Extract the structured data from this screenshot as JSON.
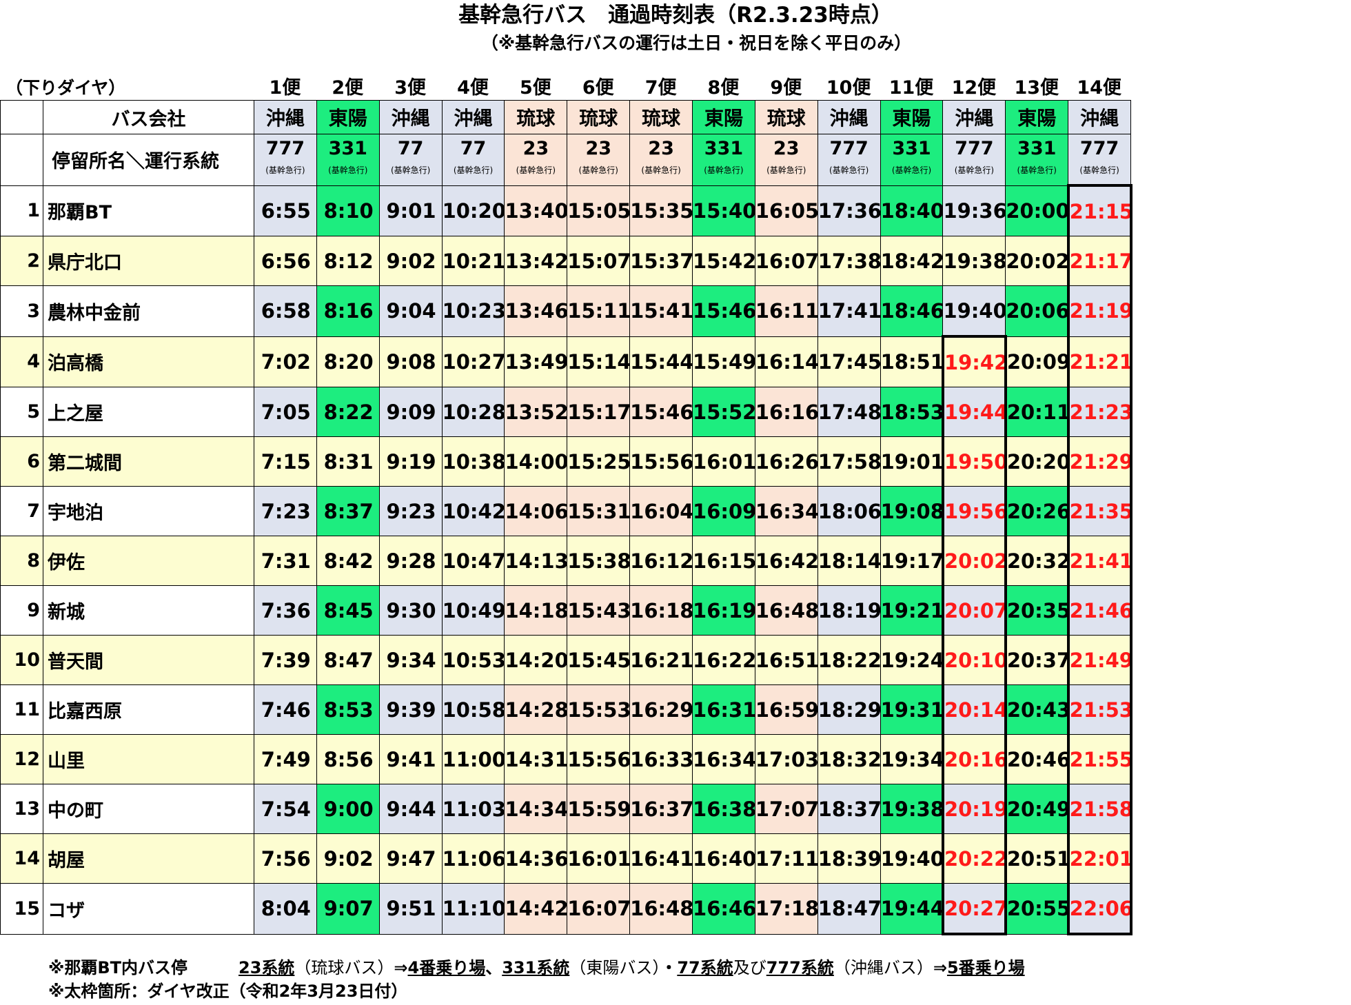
{
  "title": "基幹急行バス　通過時刻表（R2.3.23時点）",
  "subtitle": "（※基幹急行バスの運行は土日・祝日を除く平日のみ）",
  "direction_label": "（下りダイヤ）",
  "header": {
    "company_label": "バス会社",
    "stop_label": "停留所名＼運行系統",
    "system_sub": "(基幹急行)"
  },
  "trips": [
    {
      "label": "1便",
      "company": "沖縄",
      "system": "777",
      "color": "okinawa"
    },
    {
      "label": "2便",
      "company": "東陽",
      "system": "331",
      "color": "toyo"
    },
    {
      "label": "3便",
      "company": "沖縄",
      "system": "77",
      "color": "okinawa"
    },
    {
      "label": "4便",
      "company": "沖縄",
      "system": "77",
      "color": "okinawa"
    },
    {
      "label": "5便",
      "company": "琉球",
      "system": "23",
      "color": "ryukyu"
    },
    {
      "label": "6便",
      "company": "琉球",
      "system": "23",
      "color": "ryukyu"
    },
    {
      "label": "7便",
      "company": "琉球",
      "system": "23",
      "color": "ryukyu"
    },
    {
      "label": "8便",
      "company": "東陽",
      "system": "331",
      "color": "toyo"
    },
    {
      "label": "9便",
      "company": "琉球",
      "system": "23",
      "color": "ryukyu"
    },
    {
      "label": "10便",
      "company": "沖縄",
      "system": "777",
      "color": "okinawa"
    },
    {
      "label": "11便",
      "company": "東陽",
      "system": "331",
      "color": "toyo"
    },
    {
      "label": "12便",
      "company": "沖縄",
      "system": "777",
      "color": "okinawa"
    },
    {
      "label": "13便",
      "company": "東陽",
      "system": "331",
      "color": "toyo"
    },
    {
      "label": "14便",
      "company": "沖縄",
      "system": "777",
      "color": "okinawa"
    }
  ],
  "stops": [
    {
      "num": "1",
      "name": "那覇BT",
      "times": [
        "6:55",
        "8:10",
        "9:01",
        "10:20",
        "13:40",
        "15:05",
        "15:35",
        "15:40",
        "16:05",
        "17:36",
        "18:40",
        "19:36",
        "20:00",
        "21:15"
      ]
    },
    {
      "num": "2",
      "name": "県庁北口",
      "times": [
        "6:56",
        "8:12",
        "9:02",
        "10:21",
        "13:42",
        "15:07",
        "15:37",
        "15:42",
        "16:07",
        "17:38",
        "18:42",
        "19:38",
        "20:02",
        "21:17"
      ]
    },
    {
      "num": "3",
      "name": "農林中金前",
      "times": [
        "6:58",
        "8:16",
        "9:04",
        "10:23",
        "13:46",
        "15:11",
        "15:41",
        "15:46",
        "16:11",
        "17:41",
        "18:46",
        "19:40",
        "20:06",
        "21:19"
      ]
    },
    {
      "num": "4",
      "name": "泊高橋",
      "times": [
        "7:02",
        "8:20",
        "9:08",
        "10:27",
        "13:49",
        "15:14",
        "15:44",
        "15:49",
        "16:14",
        "17:45",
        "18:51",
        "19:42",
        "20:09",
        "21:21"
      ]
    },
    {
      "num": "5",
      "name": "上之屋",
      "times": [
        "7:05",
        "8:22",
        "9:09",
        "10:28",
        "13:52",
        "15:17",
        "15:46",
        "15:52",
        "16:16",
        "17:48",
        "18:53",
        "19:44",
        "20:11",
        "21:23"
      ]
    },
    {
      "num": "6",
      "name": "第二城間",
      "times": [
        "7:15",
        "8:31",
        "9:19",
        "10:38",
        "14:00",
        "15:25",
        "15:56",
        "16:01",
        "16:26",
        "17:58",
        "19:01",
        "19:50",
        "20:20",
        "21:29"
      ]
    },
    {
      "num": "7",
      "name": "宇地泊",
      "times": [
        "7:23",
        "8:37",
        "9:23",
        "10:42",
        "14:06",
        "15:31",
        "16:04",
        "16:09",
        "16:34",
        "18:06",
        "19:08",
        "19:56",
        "20:26",
        "21:35"
      ]
    },
    {
      "num": "8",
      "name": "伊佐",
      "times": [
        "7:31",
        "8:42",
        "9:28",
        "10:47",
        "14:13",
        "15:38",
        "16:12",
        "16:15",
        "16:42",
        "18:14",
        "19:17",
        "20:02",
        "20:32",
        "21:41"
      ]
    },
    {
      "num": "9",
      "name": "新城",
      "times": [
        "7:36",
        "8:45",
        "9:30",
        "10:49",
        "14:18",
        "15:43",
        "16:18",
        "16:19",
        "16:48",
        "18:19",
        "19:21",
        "20:07",
        "20:35",
        "21:46"
      ]
    },
    {
      "num": "10",
      "name": "普天間",
      "times": [
        "7:39",
        "8:47",
        "9:34",
        "10:53",
        "14:20",
        "15:45",
        "16:21",
        "16:22",
        "16:51",
        "18:22",
        "19:24",
        "20:10",
        "20:37",
        "21:49"
      ]
    },
    {
      "num": "11",
      "name": "比嘉西原",
      "times": [
        "7:46",
        "8:53",
        "9:39",
        "10:58",
        "14:28",
        "15:53",
        "16:29",
        "16:31",
        "16:59",
        "18:29",
        "19:31",
        "20:14",
        "20:43",
        "21:53"
      ]
    },
    {
      "num": "12",
      "name": "山里",
      "times": [
        "7:49",
        "8:56",
        "9:41",
        "11:00",
        "14:31",
        "15:56",
        "16:33",
        "16:34",
        "17:03",
        "18:32",
        "19:34",
        "20:16",
        "20:46",
        "21:55"
      ]
    },
    {
      "num": "13",
      "name": "中の町",
      "times": [
        "7:54",
        "9:00",
        "9:44",
        "11:03",
        "14:34",
        "15:59",
        "16:37",
        "16:38",
        "17:07",
        "18:37",
        "19:38",
        "20:19",
        "20:49",
        "21:58"
      ]
    },
    {
      "num": "14",
      "name": "胡屋",
      "times": [
        "7:56",
        "9:02",
        "9:47",
        "11:06",
        "14:36",
        "16:01",
        "16:41",
        "16:40",
        "17:11",
        "18:39",
        "19:40",
        "20:22",
        "20:51",
        "22:01"
      ]
    },
    {
      "num": "15",
      "name": "コザ",
      "times": [
        "8:04",
        "9:07",
        "9:51",
        "11:10",
        "14:42",
        "16:07",
        "16:48",
        "16:46",
        "17:18",
        "18:47",
        "19:44",
        "20:27",
        "20:55",
        "22:06"
      ]
    }
  ],
  "changed": {
    "trip12_from_stop": 4,
    "trip14_from_stop": 1,
    "text_color": "#ff1a1a"
  },
  "colors": {
    "okinawa": "#dee3ef",
    "toyo": "#1ded7f",
    "ryukyu": "#fbe4d6",
    "row_odd": "#ffffff",
    "row_even": "#fdfdd1"
  },
  "notes": {
    "n1_prefix": "※那覇BT内バス停",
    "n1_23": "23系統",
    "n1_ryukyu": "（琉球バス）",
    "n1_arrow1": "⇒",
    "n1_berth4": "4番乗り場",
    "n1_sep": "、",
    "n1_331": "331系統",
    "n1_toyo": "（東陽バス）",
    "n1_dot": "・",
    "n1_77": "77系統",
    "n1_and": "及び",
    "n1_777": "777系統",
    "n1_okinawa": "（沖縄バス）",
    "n1_arrow2": "⇒",
    "n1_berth5": "5番乗り場",
    "n2": "※太枠箇所：ダイヤ改正（令和2年3月23日付）"
  }
}
